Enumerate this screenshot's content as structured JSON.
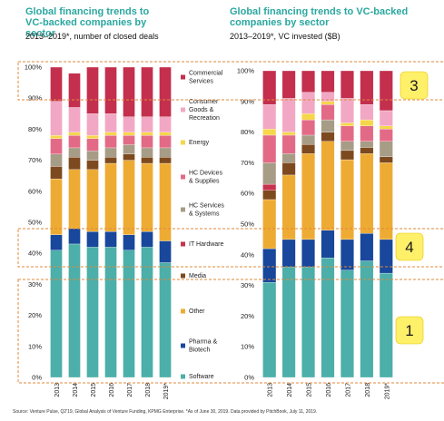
{
  "colors": {
    "title": "#2aa7a0",
    "highlight_box": "#e08a3a",
    "marker_fill": "#fff06a"
  },
  "source_note": "Source: Venture Pulse, Q2'19, Global Analysis of Venture Funding, KPMG Enterprise. *As of June 30, 2019. Data provided by PitchBook, July 11, 2019.",
  "legend": {
    "commercial": "Commercial\nServices",
    "consumer": "Consumer\nGoods &\nRecreation",
    "energy": "Energy",
    "hcdev": "HC Devices\n& Supplies",
    "hcserv": "HC Services\n& Systems",
    "it": "IT Hardware",
    "media": "Media",
    "other": "Other",
    "pharma": "Pharma &\nBiotech",
    "software": "Software"
  },
  "markers": {
    "top": "3",
    "middle": "4",
    "bottom": "1"
  },
  "chart_data": [
    {
      "type": "bar",
      "stacked": true,
      "title": "Global financing trends to VC-backed companies by sector",
      "subtitle": "2013–2019*, number of closed deals",
      "categories": [
        "2013",
        "2014",
        "2015",
        "2016",
        "2017",
        "2018",
        "2019*"
      ],
      "ylim": [
        0,
        100
      ],
      "yticks": [
        "0%",
        "10%",
        "20%",
        "30%",
        "40%",
        "50%",
        "60%",
        "70%",
        "80%",
        "90%",
        "100%"
      ],
      "series": [
        {
          "name": "Software",
          "color": "#4cafa9",
          "values": [
            41,
            43,
            42,
            42,
            41,
            42,
            37
          ]
        },
        {
          "name": "Pharma & Biotech",
          "color": "#18479b",
          "values": [
            5,
            5,
            5,
            5,
            5,
            5,
            7
          ]
        },
        {
          "name": "Other",
          "color": "#eeab33",
          "values": [
            18,
            19,
            20,
            22,
            24,
            22,
            25
          ]
        },
        {
          "name": "Media",
          "color": "#7d4a1f",
          "values": [
            4,
            4,
            3,
            2,
            2,
            2,
            2
          ]
        },
        {
          "name": "IT Hardware",
          "color": "#c8324e",
          "values": [
            0,
            0,
            0,
            0,
            0,
            0,
            0
          ]
        },
        {
          "name": "HC Services & Systems",
          "color": "#a79c86",
          "values": [
            4,
            3,
            3,
            3,
            3,
            3,
            3
          ]
        },
        {
          "name": "HC Devices & Supplies",
          "color": "#e36a86",
          "values": [
            5,
            4,
            4,
            4,
            3,
            4,
            4
          ]
        },
        {
          "name": "Energy",
          "color": "#f6d64a",
          "values": [
            1,
            1,
            1,
            1,
            1,
            1,
            1
          ]
        },
        {
          "name": "Consumer Goods & Recreation",
          "color": "#f2a8c4",
          "values": [
            11,
            8,
            7,
            6,
            5,
            5,
            5
          ]
        },
        {
          "name": "Commercial Services",
          "color": "#c32f4d",
          "values": [
            11,
            11,
            15,
            15,
            16,
            16,
            16
          ]
        }
      ]
    },
    {
      "type": "bar",
      "stacked": true,
      "title": "Global financing trends to VC-backed companies by sector",
      "subtitle": "2013–2019*, VC invested ($B)",
      "categories": [
        "2013",
        "2014",
        "2015",
        "2016",
        "2017",
        "2018",
        "2019*"
      ],
      "ylim": [
        0,
        100
      ],
      "yticks": [
        "0%",
        "10%",
        "20%",
        "30%",
        "40%",
        "50%",
        "60%",
        "70%",
        "80%",
        "90%",
        "100%"
      ],
      "series": [
        {
          "name": "Software",
          "color": "#4cafa9",
          "values": [
            31,
            36,
            36,
            39,
            35,
            38,
            34
          ]
        },
        {
          "name": "Pharma & Biotech",
          "color": "#18479b",
          "values": [
            11,
            9,
            9,
            9,
            10,
            9,
            11
          ]
        },
        {
          "name": "Other",
          "color": "#eeab33",
          "values": [
            16,
            21,
            28,
            29,
            26,
            26,
            25
          ]
        },
        {
          "name": "Media",
          "color": "#7d4a1f",
          "values": [
            3,
            4,
            3,
            3,
            3,
            2,
            2
          ]
        },
        {
          "name": "IT Hardware",
          "color": "#c8324e",
          "values": [
            2,
            0,
            0,
            0,
            0,
            0,
            0
          ]
        },
        {
          "name": "HC Services & Systems",
          "color": "#a79c86",
          "values": [
            7,
            3,
            3,
            4,
            3,
            2,
            5
          ]
        },
        {
          "name": "HC Devices & Supplies",
          "color": "#e36a86",
          "values": [
            9,
            6,
            5,
            5,
            5,
            5,
            4
          ]
        },
        {
          "name": "Energy",
          "color": "#f6d64a",
          "values": [
            2,
            1,
            2,
            1,
            1,
            2,
            1
          ]
        },
        {
          "name": "Consumer Goods & Recreation",
          "color": "#f2a8c4",
          "values": [
            8,
            11,
            7,
            3,
            8,
            5,
            5
          ]
        },
        {
          "name": "Commercial Services",
          "color": "#c32f4d",
          "values": [
            11,
            9,
            7,
            7,
            9,
            11,
            13
          ]
        }
      ]
    }
  ]
}
